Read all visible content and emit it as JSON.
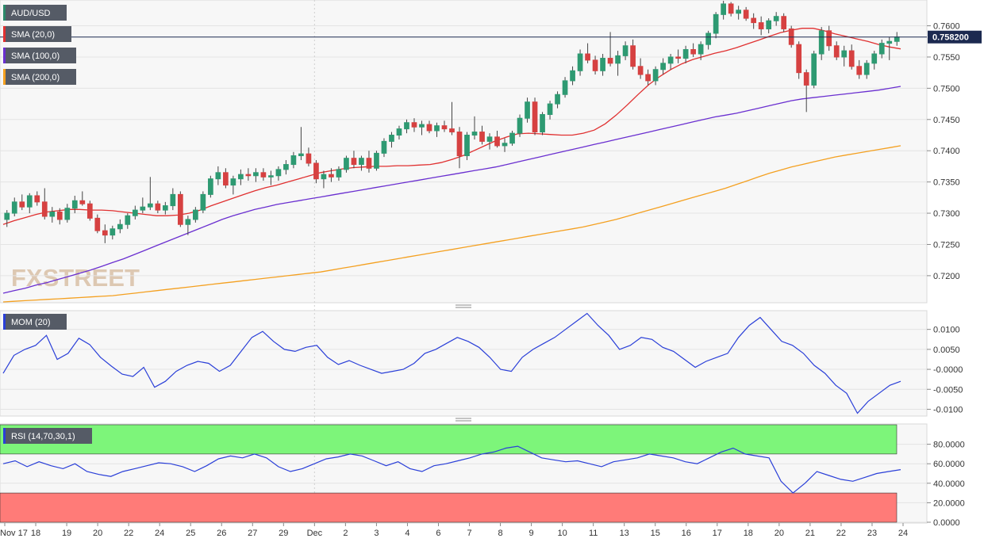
{
  "chart_data": [
    {
      "type": "candlestick",
      "symbol": "AUD/USD",
      "indicators": [
        {
          "name": "SMA (20,0)",
          "color": "#e03030"
        },
        {
          "name": "SMA (100,0)",
          "color": "#6a2fd0"
        },
        {
          "name": "SMA (200,0)",
          "color": "#f4a020"
        }
      ],
      "last_price": "0.758200",
      "ylim": [
        0.7158,
        0.764
      ],
      "y_ticks": [
        "0.7600",
        "0.7550",
        "0.7500",
        "0.7450",
        "0.7400",
        "0.7350",
        "0.7300",
        "0.7250",
        "0.7200"
      ],
      "x_ticks": [
        "Nov 17",
        "18",
        "19",
        "20",
        "22",
        "24",
        "25",
        "26",
        "27",
        "29",
        "Dec",
        "2",
        "3",
        "4",
        "6",
        "7",
        "8",
        "9",
        "10",
        "11",
        "13",
        "15",
        "16",
        "17",
        "18",
        "20",
        "21",
        "22",
        "23",
        "24"
      ],
      "watermark": "FXSTREET",
      "candles": [
        [
          0.729,
          0.7305,
          0.7278,
          0.73
        ],
        [
          0.73,
          0.7325,
          0.7295,
          0.7318
        ],
        [
          0.7318,
          0.733,
          0.7305,
          0.731
        ],
        [
          0.731,
          0.7332,
          0.73,
          0.7328
        ],
        [
          0.7328,
          0.7335,
          0.7312,
          0.7318
        ],
        [
          0.7318,
          0.734,
          0.729,
          0.7295
        ],
        [
          0.7295,
          0.731,
          0.7285,
          0.7302
        ],
        [
          0.7302,
          0.7308,
          0.7282,
          0.729
        ],
        [
          0.729,
          0.7315,
          0.7285,
          0.7308
        ],
        [
          0.7308,
          0.7328,
          0.73,
          0.732
        ],
        [
          0.732,
          0.7335,
          0.7312,
          0.7315
        ],
        [
          0.7315,
          0.732,
          0.7288,
          0.7292
        ],
        [
          0.7292,
          0.7298,
          0.7268,
          0.7272
        ],
        [
          0.7272,
          0.7282,
          0.7252,
          0.7265
        ],
        [
          0.7265,
          0.728,
          0.7258,
          0.7275
        ],
        [
          0.7275,
          0.729,
          0.7268,
          0.7282
        ],
        [
          0.7282,
          0.73,
          0.7275,
          0.7296
        ],
        [
          0.7296,
          0.7312,
          0.729,
          0.7305
        ],
        [
          0.7305,
          0.7325,
          0.73,
          0.731
        ],
        [
          0.731,
          0.7358,
          0.7305,
          0.7315
        ],
        [
          0.7315,
          0.732,
          0.73,
          0.7305
        ],
        [
          0.7305,
          0.7318,
          0.7298,
          0.7312
        ],
        [
          0.7312,
          0.734,
          0.7305,
          0.733
        ],
        [
          0.733,
          0.7335,
          0.7278,
          0.7282
        ],
        [
          0.7282,
          0.7296,
          0.7265,
          0.729
        ],
        [
          0.729,
          0.731,
          0.7285,
          0.7305
        ],
        [
          0.7305,
          0.7335,
          0.73,
          0.733
        ],
        [
          0.733,
          0.736,
          0.7325,
          0.7355
        ],
        [
          0.7355,
          0.7375,
          0.7345,
          0.7365
        ],
        [
          0.7365,
          0.7372,
          0.734,
          0.7345
        ],
        [
          0.7345,
          0.736,
          0.733,
          0.7355
        ],
        [
          0.7355,
          0.737,
          0.7345,
          0.7362
        ],
        [
          0.7362,
          0.7372,
          0.7352,
          0.736
        ],
        [
          0.736,
          0.7372,
          0.735,
          0.7365
        ],
        [
          0.7365,
          0.7372,
          0.7352,
          0.7358
        ],
        [
          0.7358,
          0.7368,
          0.7345,
          0.736
        ],
        [
          0.736,
          0.7375,
          0.7352,
          0.737
        ],
        [
          0.737,
          0.7385,
          0.7362,
          0.7378
        ],
        [
          0.7378,
          0.7398,
          0.7372,
          0.7392
        ],
        [
          0.7392,
          0.7438,
          0.7385,
          0.7395
        ],
        [
          0.7395,
          0.7405,
          0.7375,
          0.738
        ],
        [
          0.738,
          0.7385,
          0.7348,
          0.7355
        ],
        [
          0.7355,
          0.7368,
          0.734,
          0.7362
        ],
        [
          0.7362,
          0.7372,
          0.735,
          0.7358
        ],
        [
          0.7358,
          0.7375,
          0.7352,
          0.737
        ],
        [
          0.737,
          0.7392,
          0.7365,
          0.7388
        ],
        [
          0.7388,
          0.74,
          0.7372,
          0.7378
        ],
        [
          0.7378,
          0.7392,
          0.7368,
          0.7388
        ],
        [
          0.7388,
          0.74,
          0.7365,
          0.7372
        ],
        [
          0.7372,
          0.74,
          0.7368,
          0.7396
        ],
        [
          0.7396,
          0.742,
          0.739,
          0.7415
        ],
        [
          0.7415,
          0.743,
          0.7405,
          0.7425
        ],
        [
          0.7425,
          0.744,
          0.7418,
          0.7435
        ],
        [
          0.7435,
          0.745,
          0.7428,
          0.7445
        ],
        [
          0.7445,
          0.7452,
          0.743,
          0.7438
        ],
        [
          0.7438,
          0.7448,
          0.7425,
          0.7442
        ],
        [
          0.7442,
          0.7448,
          0.7428,
          0.7432
        ],
        [
          0.7432,
          0.7445,
          0.7422,
          0.744
        ],
        [
          0.744,
          0.7448,
          0.743,
          0.7435
        ],
        [
          0.7435,
          0.7478,
          0.7425,
          0.743
        ],
        [
          0.743,
          0.7438,
          0.7372,
          0.7392
        ],
        [
          0.7392,
          0.743,
          0.7385,
          0.7425
        ],
        [
          0.7425,
          0.7455,
          0.7418,
          0.743
        ],
        [
          0.743,
          0.744,
          0.741,
          0.7415
        ],
        [
          0.7415,
          0.7428,
          0.7402,
          0.7422
        ],
        [
          0.7422,
          0.7432,
          0.7405,
          0.7408
        ],
        [
          0.7408,
          0.742,
          0.7398,
          0.7412
        ],
        [
          0.7412,
          0.7432,
          0.7408,
          0.7428
        ],
        [
          0.7428,
          0.7458,
          0.7422,
          0.7452
        ],
        [
          0.7452,
          0.7485,
          0.7445,
          0.7478
        ],
        [
          0.7478,
          0.7485,
          0.7425,
          0.743
        ],
        [
          0.743,
          0.7462,
          0.7425,
          0.7458
        ],
        [
          0.7458,
          0.748,
          0.745,
          0.7475
        ],
        [
          0.7475,
          0.7495,
          0.7468,
          0.749
        ],
        [
          0.749,
          0.7518,
          0.7485,
          0.7512
        ],
        [
          0.7512,
          0.7535,
          0.7505,
          0.7528
        ],
        [
          0.7528,
          0.7562,
          0.752,
          0.7555
        ],
        [
          0.7555,
          0.7572,
          0.754,
          0.7545
        ],
        [
          0.7545,
          0.7552,
          0.7522,
          0.7528
        ],
        [
          0.7528,
          0.7555,
          0.752,
          0.7548
        ],
        [
          0.7548,
          0.759,
          0.7535,
          0.754
        ],
        [
          0.754,
          0.756,
          0.752,
          0.7552
        ],
        [
          0.7552,
          0.7575,
          0.7545,
          0.7568
        ],
        [
          0.7568,
          0.7578,
          0.753,
          0.7535
        ],
        [
          0.7535,
          0.7548,
          0.7515,
          0.7522
        ],
        [
          0.7522,
          0.753,
          0.7505,
          0.7512
        ],
        [
          0.7512,
          0.7535,
          0.7505,
          0.753
        ],
        [
          0.753,
          0.7548,
          0.7522,
          0.754
        ],
        [
          0.754,
          0.7555,
          0.753,
          0.755
        ],
        [
          0.755,
          0.7562,
          0.754,
          0.7548
        ],
        [
          0.7548,
          0.7568,
          0.754,
          0.7562
        ],
        [
          0.7562,
          0.7572,
          0.755,
          0.7555
        ],
        [
          0.7555,
          0.7575,
          0.7545,
          0.757
        ],
        [
          0.757,
          0.7592,
          0.7562,
          0.7588
        ],
        [
          0.7588,
          0.7622,
          0.758,
          0.7618
        ],
        [
          0.7618,
          0.764,
          0.761,
          0.7635
        ],
        [
          0.7635,
          0.7638,
          0.7615,
          0.762
        ],
        [
          0.762,
          0.7632,
          0.761,
          0.7625
        ],
        [
          0.7625,
          0.763,
          0.7608,
          0.7612
        ],
        [
          0.7612,
          0.762,
          0.7595,
          0.7605
        ],
        [
          0.7605,
          0.7615,
          0.7585,
          0.7595
        ],
        [
          0.7595,
          0.7612,
          0.7588,
          0.7608
        ],
        [
          0.7608,
          0.7622,
          0.76,
          0.7615
        ],
        [
          0.7615,
          0.762,
          0.759,
          0.7595
        ],
        [
          0.7595,
          0.76,
          0.7565,
          0.757
        ],
        [
          0.757,
          0.7575,
          0.7515,
          0.7525
        ],
        [
          0.7525,
          0.753,
          0.7462,
          0.7505
        ],
        [
          0.7505,
          0.756,
          0.75,
          0.7555
        ],
        [
          0.7555,
          0.7598,
          0.7545,
          0.7592
        ],
        [
          0.7592,
          0.76,
          0.756,
          0.7568
        ],
        [
          0.7568,
          0.7575,
          0.7545,
          0.755
        ],
        [
          0.755,
          0.7568,
          0.7535,
          0.756
        ],
        [
          0.756,
          0.757,
          0.753,
          0.7535
        ],
        [
          0.7535,
          0.7545,
          0.7515,
          0.7522
        ],
        [
          0.7522,
          0.7545,
          0.7515,
          0.754
        ],
        [
          0.754,
          0.756,
          0.753,
          0.7555
        ],
        [
          0.7555,
          0.7578,
          0.7548,
          0.7572
        ],
        [
          0.7572,
          0.7582,
          0.7545,
          0.7575
        ],
        [
          0.7575,
          0.759,
          0.7568,
          0.7582
        ]
      ],
      "sma20": [
        0.7282,
        0.7288,
        0.7293,
        0.7298,
        0.7302,
        0.7304,
        0.7306,
        0.7306,
        0.7305,
        0.7305,
        0.7304,
        0.7302,
        0.73,
        0.7298,
        0.7296,
        0.7296,
        0.7297,
        0.73,
        0.7305,
        0.7312,
        0.7318,
        0.7324,
        0.733,
        0.7336,
        0.7341,
        0.7345,
        0.735,
        0.7355,
        0.736,
        0.7365,
        0.7368,
        0.7371,
        0.7373,
        0.7374,
        0.7375,
        0.7375,
        0.7376,
        0.7376,
        0.7377,
        0.7378,
        0.7381,
        0.7386,
        0.7392,
        0.74,
        0.7408,
        0.7416,
        0.7422,
        0.7427,
        0.7428,
        0.7427,
        0.7426,
        0.7425,
        0.7425,
        0.7428,
        0.7433,
        0.7443,
        0.7457,
        0.7473,
        0.749,
        0.7506,
        0.7519,
        0.753,
        0.7539,
        0.7546,
        0.7551,
        0.7556,
        0.756,
        0.7565,
        0.7571,
        0.7577,
        0.7583,
        0.7589,
        0.7593,
        0.7596,
        0.7596,
        0.7592,
        0.7587,
        0.7583,
        0.7579,
        0.7575,
        0.757,
        0.7566,
        0.7563
      ],
      "sma100": [
        0.7172,
        0.7176,
        0.718,
        0.7185,
        0.7189,
        0.7194,
        0.7199,
        0.7204,
        0.7209,
        0.7215,
        0.7221,
        0.7227,
        0.7234,
        0.7241,
        0.7248,
        0.7255,
        0.7262,
        0.7269,
        0.7276,
        0.7283,
        0.729,
        0.7296,
        0.7301,
        0.7306,
        0.731,
        0.7314,
        0.7317,
        0.732,
        0.7323,
        0.7326,
        0.7329,
        0.7332,
        0.7335,
        0.7338,
        0.7341,
        0.7344,
        0.7347,
        0.735,
        0.7353,
        0.7356,
        0.7359,
        0.7362,
        0.7365,
        0.7368,
        0.7371,
        0.7374,
        0.7378,
        0.7382,
        0.7386,
        0.739,
        0.7394,
        0.7398,
        0.7402,
        0.7406,
        0.741,
        0.7414,
        0.7418,
        0.7422,
        0.7426,
        0.743,
        0.7434,
        0.7438,
        0.7442,
        0.7446,
        0.745,
        0.7454,
        0.7457,
        0.746,
        0.7464,
        0.7468,
        0.7472,
        0.7476,
        0.748,
        0.7483,
        0.7485,
        0.7487,
        0.7489,
        0.7491,
        0.7493,
        0.7495,
        0.7497,
        0.75,
        0.7503
      ],
      "sma200": [
        0.7158,
        0.7159,
        0.716,
        0.7161,
        0.7162,
        0.7163,
        0.7164,
        0.7165,
        0.7166,
        0.7167,
        0.7168,
        0.717,
        0.7172,
        0.7174,
        0.7176,
        0.7178,
        0.718,
        0.7182,
        0.7184,
        0.7186,
        0.7188,
        0.719,
        0.7192,
        0.7194,
        0.7196,
        0.7198,
        0.72,
        0.7202,
        0.7204,
        0.7206,
        0.7209,
        0.7212,
        0.7215,
        0.7218,
        0.7221,
        0.7224,
        0.7227,
        0.723,
        0.7233,
        0.7236,
        0.7239,
        0.7242,
        0.7245,
        0.7248,
        0.7251,
        0.7254,
        0.7257,
        0.726,
        0.7263,
        0.7266,
        0.7269,
        0.7272,
        0.7275,
        0.7278,
        0.7282,
        0.7286,
        0.729,
        0.7295,
        0.73,
        0.7305,
        0.731,
        0.7315,
        0.732,
        0.7325,
        0.733,
        0.7335,
        0.734,
        0.7346,
        0.7352,
        0.7358,
        0.7364,
        0.7369,
        0.7374,
        0.7378,
        0.7382,
        0.7386,
        0.739,
        0.7393,
        0.7396,
        0.7399,
        0.7402,
        0.7405,
        0.7408
      ]
    },
    {
      "type": "line",
      "name": "MOM (20)",
      "color": "#2a3fd8",
      "ylim": [
        -0.0115,
        0.0145
      ],
      "y_ticks": [
        "0.0100",
        "0.0050",
        "-0.0000",
        "-0.0050",
        "-0.0100"
      ],
      "values": [
        -0.001,
        0.0035,
        0.005,
        0.006,
        0.0085,
        0.0025,
        0.004,
        0.0078,
        0.0062,
        0.003,
        0.0008,
        -0.0012,
        -0.0018,
        0.0005,
        -0.0045,
        -0.003,
        -0.0005,
        0.001,
        0.002,
        0.0015,
        -0.0005,
        0.001,
        0.0045,
        0.008,
        0.0095,
        0.007,
        0.005,
        0.0045,
        0.0055,
        0.006,
        0.003,
        0.0012,
        0.0022,
        0.001,
        0.0,
        -0.001,
        -0.0005,
        0.0,
        0.0015,
        0.004,
        0.005,
        0.0065,
        0.008,
        0.007,
        0.0055,
        0.003,
        0.0,
        -0.0005,
        0.003,
        0.005,
        0.0065,
        0.008,
        0.01,
        0.012,
        0.014,
        0.011,
        0.0085,
        0.005,
        0.006,
        0.008,
        0.0075,
        0.0055,
        0.0045,
        0.0025,
        0.0005,
        0.002,
        0.003,
        0.004,
        0.008,
        0.011,
        0.013,
        0.01,
        0.007,
        0.006,
        0.004,
        0.001,
        -0.001,
        -0.004,
        -0.006,
        -0.011,
        -0.008,
        -0.006,
        -0.004,
        -0.003
      ]
    },
    {
      "type": "line",
      "name": "RSI (14,70,30,1)",
      "color": "#2a3fd8",
      "overbought": 70,
      "oversold": 30,
      "ylim": [
        0,
        100
      ],
      "y_ticks": [
        "80.0000",
        "60.0000",
        "40.0000",
        "20.0000",
        "0.0000"
      ],
      "values": [
        60,
        63,
        57,
        62,
        58,
        55,
        60,
        52,
        49,
        47,
        52,
        55,
        58,
        61,
        60,
        57,
        52,
        58,
        65,
        68,
        66,
        70,
        66,
        57,
        52,
        55,
        60,
        65,
        67,
        70,
        68,
        63,
        58,
        62,
        55,
        52,
        58,
        60,
        63,
        66,
        70,
        72,
        76,
        78,
        72,
        66,
        64,
        62,
        63,
        60,
        57,
        62,
        64,
        66,
        70,
        68,
        66,
        62,
        60,
        66,
        72,
        76,
        70,
        68,
        66,
        42,
        30,
        40,
        52,
        48,
        44,
        42,
        46,
        50,
        52,
        54
      ]
    }
  ]
}
